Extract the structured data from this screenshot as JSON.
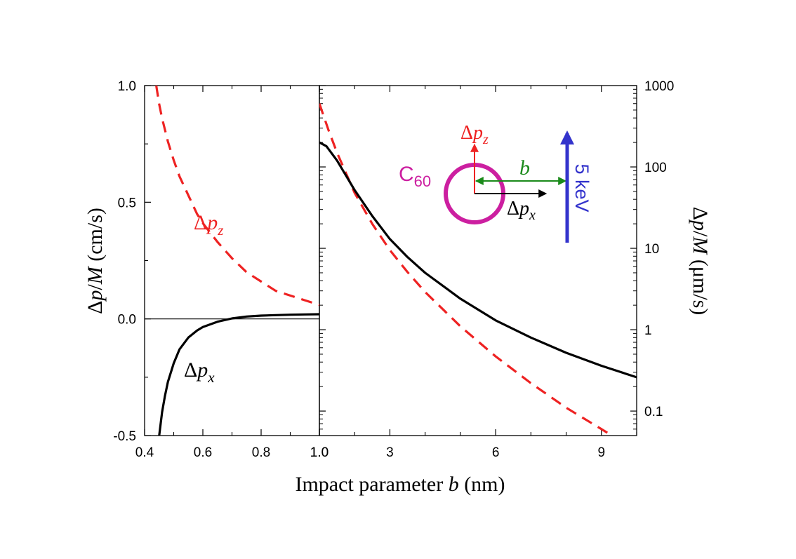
{
  "chart_data": {
    "type": "line",
    "xlabel_text": "Impact parameter ",
    "xlabel_var": "b",
    "xlabel_unit": " (nm)",
    "panels": [
      {
        "name": "left",
        "scale": "linear",
        "xlim": [
          0.4,
          1.0
        ],
        "ylim": [
          -0.5,
          1.0
        ],
        "x_ticks": [
          0.4,
          0.6,
          0.8,
          1.0
        ],
        "x_tick_labels": [
          "0.4",
          "0.6",
          "0.8",
          "1.0"
        ],
        "y_ticks": [
          -0.5,
          0.0,
          0.5,
          1.0
        ],
        "y_tick_labels": [
          "-0.5",
          "0.0",
          "0.5",
          "1.0"
        ],
        "ylabel_delta": "Δ",
        "ylabel_p": "p",
        "ylabel_slash": "/",
        "ylabel_M": "M",
        "ylabel_unit": " (cm/s)",
        "zero_line": true,
        "series": [
          {
            "name": "dpz",
            "label_delta": "Δ",
            "label_var": "p",
            "label_sub": "z",
            "color": "#ee2222",
            "dashed": true,
            "x": [
              0.44,
              0.45,
              0.46,
              0.48,
              0.5,
              0.52,
              0.55,
              0.58,
              0.6,
              0.65,
              0.7,
              0.75,
              0.8,
              0.85,
              0.9,
              0.95,
              1.0
            ],
            "y": [
              1.0,
              0.92,
              0.86,
              0.76,
              0.68,
              0.61,
              0.53,
              0.45,
              0.41,
              0.33,
              0.26,
              0.2,
              0.16,
              0.12,
              0.1,
              0.08,
              0.06
            ]
          },
          {
            "name": "dpx",
            "label_delta": "Δ",
            "label_var": "p",
            "label_sub": "x",
            "color": "#000000",
            "dashed": false,
            "x": [
              0.45,
              0.46,
              0.47,
              0.48,
              0.5,
              0.52,
              0.55,
              0.58,
              0.6,
              0.65,
              0.7,
              0.75,
              0.8,
              0.85,
              0.9,
              0.95,
              1.0
            ],
            "y": [
              -0.5,
              -0.4,
              -0.33,
              -0.27,
              -0.19,
              -0.13,
              -0.08,
              -0.05,
              -0.035,
              -0.012,
              0.002,
              0.01,
              0.014,
              0.016,
              0.018,
              0.019,
              0.02
            ]
          }
        ]
      },
      {
        "name": "right",
        "scale": "log",
        "xlim": [
          1.0,
          10.0
        ],
        "ylim": [
          0.05,
          1000
        ],
        "x_ticks": [
          1.0,
          3,
          6,
          9
        ],
        "x_tick_labels": [
          "1.0",
          "3",
          "6",
          "9"
        ],
        "y_ticks": [
          0.1,
          1,
          10,
          100,
          1000
        ],
        "y_tick_labels": [
          "0.1",
          "1",
          "10",
          "100",
          "1000"
        ],
        "ylabel_delta": "Δ",
        "ylabel_p": "p",
        "ylabel_slash": "/",
        "ylabel_M": "M",
        "ylabel_unit": " (μm/s)",
        "series": [
          {
            "name": "dpz",
            "color": "#ee2222",
            "dashed": true,
            "x": [
              1.0,
              1.25,
              1.5,
              2.0,
              2.5,
              3.0,
              3.5,
              4.0,
              5.0,
              6.0,
              7.0,
              8.0,
              9.0,
              9.3
            ],
            "y": [
              600,
              290,
              150,
              48,
              20,
              9.5,
              5.1,
              2.9,
              1.1,
              0.47,
              0.22,
              0.11,
              0.06,
              0.05
            ]
          },
          {
            "name": "dpx",
            "color": "#000000",
            "dashed": false,
            "x": [
              1.0,
              1.2,
              1.5,
              2.0,
              2.5,
              3.0,
              3.5,
              4.0,
              5.0,
              6.0,
              7.0,
              8.0,
              9.0,
              10.0
            ],
            "y": [
              200,
              180,
              120,
              52,
              25,
              13,
              7.8,
              5.0,
              2.4,
              1.3,
              0.8,
              0.52,
              0.36,
              0.26
            ]
          }
        ]
      }
    ],
    "inset": {
      "c60_label": "C",
      "c60_sub": "60",
      "c60_color": "#cc1fa0",
      "dpz_color": "#ee2222",
      "dpx_color": "#000000",
      "b_label": "b",
      "b_color": "#1a8a1a",
      "beam_label": "5 keV",
      "beam_color": "#3333cc"
    }
  }
}
